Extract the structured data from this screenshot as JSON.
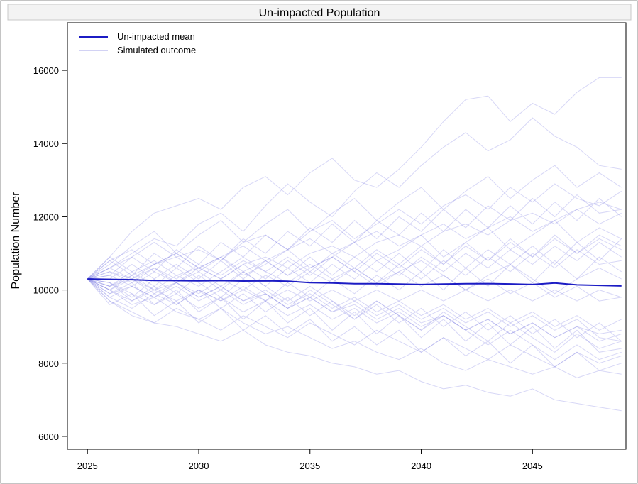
{
  "chart_data": {
    "type": "line",
    "title": "Un-impacted Population",
    "xlabel": "",
    "ylabel": "Population Number",
    "xlim": [
      2024.1,
      2049.2
    ],
    "ylim": [
      5650,
      17300
    ],
    "x_ticks": [
      2025,
      2030,
      2035,
      2040,
      2045
    ],
    "y_ticks": [
      6000,
      8000,
      10000,
      12000,
      14000,
      16000
    ],
    "grid": false,
    "legend_position": "top-left",
    "x": [
      2025,
      2026,
      2027,
      2028,
      2029,
      2030,
      2031,
      2032,
      2033,
      2034,
      2035,
      2036,
      2037,
      2038,
      2039,
      2040,
      2041,
      2042,
      2043,
      2044,
      2045,
      2046,
      2047,
      2048,
      2049
    ],
    "series": [
      {
        "name": "Un-impacted mean",
        "role": "mean",
        "color": "#1c1cc4",
        "values": [
          10300,
          10290,
          10280,
          10260,
          10255,
          10250,
          10255,
          10245,
          10250,
          10240,
          10200,
          10190,
          10170,
          10170,
          10160,
          10150,
          10160,
          10170,
          10175,
          10165,
          10150,
          10190,
          10140,
          10125,
          10110
        ]
      },
      {
        "name": "Simulated outcome",
        "role": "simulation",
        "color": "#8c8ce6",
        "runs": [
          [
            10300,
            10900,
            11600,
            12100,
            12300,
            12500,
            12200,
            12800,
            13100,
            12600,
            13200,
            13600,
            13000,
            12800,
            13300,
            13900,
            14600,
            15200,
            15300,
            14600,
            15100,
            14800,
            15400,
            15800,
            15800
          ],
          [
            10300,
            9700,
            9300,
            9100,
            9000,
            8800,
            8600,
            8900,
            8500,
            8300,
            8200,
            8000,
            7900,
            7700,
            7800,
            7500,
            7300,
            7400,
            7200,
            7100,
            7300,
            7000,
            6900,
            6800,
            6700
          ],
          [
            10300,
            10600,
            11000,
            11400,
            11200,
            11800,
            12100,
            11600,
            12300,
            12900,
            12400,
            12000,
            12700,
            13200,
            12800,
            13400,
            13900,
            14300,
            13800,
            14100,
            14700,
            14200,
            13900,
            13400,
            13300
          ],
          [
            10300,
            10000,
            9600,
            9800,
            9400,
            9200,
            9500,
            9100,
            8800,
            9000,
            8700,
            8400,
            8600,
            8300,
            8100,
            8400,
            8000,
            7800,
            8100,
            7900,
            7700,
            7900,
            7600,
            7800,
            7700
          ],
          [
            10300,
            10500,
            10300,
            10700,
            10900,
            11100,
            10800,
            11300,
            11500,
            11100,
            11600,
            11900,
            11400,
            11800,
            12200,
            11800,
            12300,
            12600,
            12200,
            12800,
            12400,
            12900,
            12500,
            12300,
            12700
          ],
          [
            10300,
            10100,
            10400,
            10000,
            10200,
            9800,
            10100,
            9700,
            9900,
            9500,
            9800,
            9400,
            9600,
            9200,
            9500,
            9100,
            9300,
            8900,
            9200,
            8800,
            9100,
            8700,
            9000,
            8600,
            8800
          ],
          [
            10300,
            10800,
            10400,
            11000,
            10600,
            11200,
            10800,
            11400,
            11000,
            11600,
            11200,
            11800,
            11300,
            11900,
            11500,
            12100,
            11600,
            12200,
            11700,
            12300,
            11800,
            12400,
            11900,
            12500,
            12000
          ],
          [
            10300,
            9900,
            10200,
            9600,
            10000,
            9400,
            9800,
            9200,
            9700,
            9100,
            9500,
            8900,
            9400,
            8800,
            9300,
            8700,
            9200,
            8600,
            9100,
            8500,
            9000,
            8400,
            8900,
            8300,
            8400
          ],
          [
            10300,
            10400,
            10900,
            10500,
            11100,
            10700,
            11300,
            10900,
            11500,
            11100,
            11700,
            11300,
            11900,
            11400,
            12000,
            11600,
            12200,
            11700,
            12300,
            11900,
            12500,
            12000,
            12600,
            12100,
            12200
          ],
          [
            10300,
            10200,
            9800,
            10300,
            9900,
            10400,
            10000,
            10500,
            10100,
            10600,
            10200,
            10700,
            10300,
            10800,
            10400,
            10900,
            10500,
            11000,
            10600,
            11100,
            10700,
            11200,
            10800,
            11300,
            10900
          ],
          [
            10300,
            9600,
            9900,
            9300,
            9700,
            9100,
            9500,
            8900,
            9300,
            8800,
            9200,
            8600,
            9000,
            8500,
            8900,
            8300,
            8700,
            8200,
            8600,
            8000,
            8500,
            7900,
            8300,
            7800,
            8000
          ],
          [
            10300,
            10700,
            11200,
            11600,
            11000,
            11500,
            11900,
            11300,
            11800,
            12200,
            11600,
            12100,
            12500,
            11900,
            12400,
            12800,
            12200,
            12700,
            13100,
            12500,
            13000,
            13400,
            12800,
            13200,
            12800
          ],
          [
            10300,
            10000,
            10300,
            10600,
            10200,
            10500,
            10900,
            10400,
            10700,
            11100,
            10600,
            10900,
            11300,
            10800,
            11100,
            11500,
            10900,
            11300,
            11700,
            11100,
            11500,
            11900,
            11300,
            11700,
            11400
          ],
          [
            10300,
            10200,
            9900,
            9600,
            9900,
            9500,
            9800,
            9400,
            9700,
            9300,
            9600,
            9200,
            9500,
            9100,
            9400,
            9000,
            9300,
            8900,
            9200,
            8800,
            9100,
            8700,
            9000,
            8800,
            8900
          ],
          [
            10300,
            10500,
            10200,
            10600,
            10300,
            10700,
            10400,
            10800,
            10500,
            10900,
            10500,
            11000,
            10600,
            11100,
            10700,
            11200,
            10700,
            11300,
            10800,
            11400,
            10900,
            11500,
            11000,
            11400,
            11100
          ],
          [
            10300,
            9800,
            9500,
            9900,
            9600,
            10000,
            9700,
            10100,
            9700,
            10200,
            9800,
            10300,
            9900,
            10400,
            10000,
            10500,
            10000,
            10600,
            10100,
            10700,
            10200,
            10800,
            10300,
            10900,
            10500
          ],
          [
            10300,
            10100,
            10500,
            10800,
            10400,
            10100,
            10500,
            10900,
            10500,
            10200,
            10600,
            10900,
            10500,
            10100,
            10500,
            10800,
            10400,
            10000,
            10400,
            10700,
            10300,
            9900,
            10300,
            10600,
            10300
          ],
          [
            10300,
            9700,
            9400,
            9100,
            9500,
            9200,
            8900,
            9300,
            9000,
            8700,
            9100,
            8800,
            8500,
            8900,
            8600,
            8300,
            8700,
            8400,
            8100,
            8500,
            8200,
            7900,
            8300,
            8000,
            8200
          ],
          [
            10300,
            10900,
            10500,
            10100,
            10600,
            10200,
            9800,
            10300,
            9900,
            9500,
            10000,
            9600,
            9200,
            9700,
            9300,
            8900,
            9400,
            9000,
            8600,
            9100,
            8700,
            8300,
            8800,
            8400,
            8600
          ],
          [
            10300,
            10000,
            10400,
            10700,
            11000,
            10600,
            10900,
            11200,
            10800,
            11100,
            11400,
            11000,
            11300,
            11600,
            11200,
            11500,
            11800,
            11400,
            11700,
            12000,
            11600,
            11900,
            12200,
            11800,
            12100
          ],
          [
            10300,
            10600,
            10300,
            9900,
            10200,
            9800,
            10100,
            9700,
            10000,
            9600,
            9900,
            9500,
            9800,
            9400,
            9700,
            9300,
            9600,
            9200,
            9500,
            9100,
            9400,
            9000,
            9300,
            8900,
            9200
          ],
          [
            10300,
            9900,
            10100,
            9800,
            10100,
            9700,
            10000,
            9600,
            9900,
            9500,
            9800,
            9400,
            9700,
            9300,
            9600,
            9200,
            9500,
            9100,
            9400,
            9000,
            9300,
            8900,
            9200,
            8700,
            8600
          ],
          [
            10300,
            10300,
            10700,
            10300,
            10700,
            10300,
            10800,
            10300,
            10800,
            10400,
            10900,
            10400,
            10900,
            10500,
            11000,
            10500,
            11100,
            10600,
            11100,
            10700,
            11200,
            10700,
            11300,
            10800,
            11400
          ],
          [
            10300,
            10200,
            9700,
            10100,
            9600,
            10000,
            9500,
            9900,
            9400,
            9800,
            9300,
            9700,
            9200,
            9600,
            9100,
            9500,
            9000,
            9400,
            8900,
            9300,
            8800,
            9200,
            8700,
            9100,
            8600
          ],
          [
            10300,
            10800,
            11100,
            10700,
            11000,
            10600,
            10900,
            10500,
            10800,
            10400,
            10700,
            10300,
            10600,
            10200,
            10500,
            10100,
            10400,
            10000,
            10300,
            9900,
            10200,
            9800,
            10100,
            9700,
            9800
          ],
          [
            10300,
            10000,
            9700,
            10000,
            9700,
            10000,
            9700,
            10000,
            9700,
            10000,
            9700,
            10000,
            9700,
            10000,
            9700,
            10000,
            9700,
            10000,
            9700,
            10000,
            9700,
            10000,
            9700,
            10000,
            9800
          ],
          [
            10300,
            10400,
            10100,
            10500,
            10200,
            10600,
            10300,
            10700,
            10300,
            10800,
            10400,
            10900,
            10500,
            11000,
            10600,
            11100,
            10700,
            11200,
            10800,
            11300,
            10900,
            11400,
            11000,
            11500,
            11200
          ],
          [
            10300,
            9800,
            10100,
            9800,
            10200,
            9900,
            10300,
            10000,
            10400,
            10100,
            10500,
            10200,
            10600,
            10200,
            10700,
            10300,
            10800,
            10400,
            10900,
            10500,
            11000,
            10600,
            11100,
            10700,
            10800
          ],
          [
            10300,
            10600,
            10900,
            11300,
            10900,
            10500,
            10100,
            10500,
            10100,
            9700,
            10100,
            9700,
            9300,
            9700,
            9300,
            8900,
            9300,
            8900,
            8500,
            8900,
            8500,
            8100,
            8500,
            8100,
            8300
          ],
          [
            10300,
            10100,
            10300,
            10000,
            10400,
            10600,
            10300,
            10700,
            10900,
            10600,
            11000,
            11200,
            10900,
            11300,
            11500,
            11200,
            11600,
            11800,
            11500,
            11900,
            12100,
            11800,
            12200,
            12400,
            12200
          ]
        ]
      }
    ]
  }
}
